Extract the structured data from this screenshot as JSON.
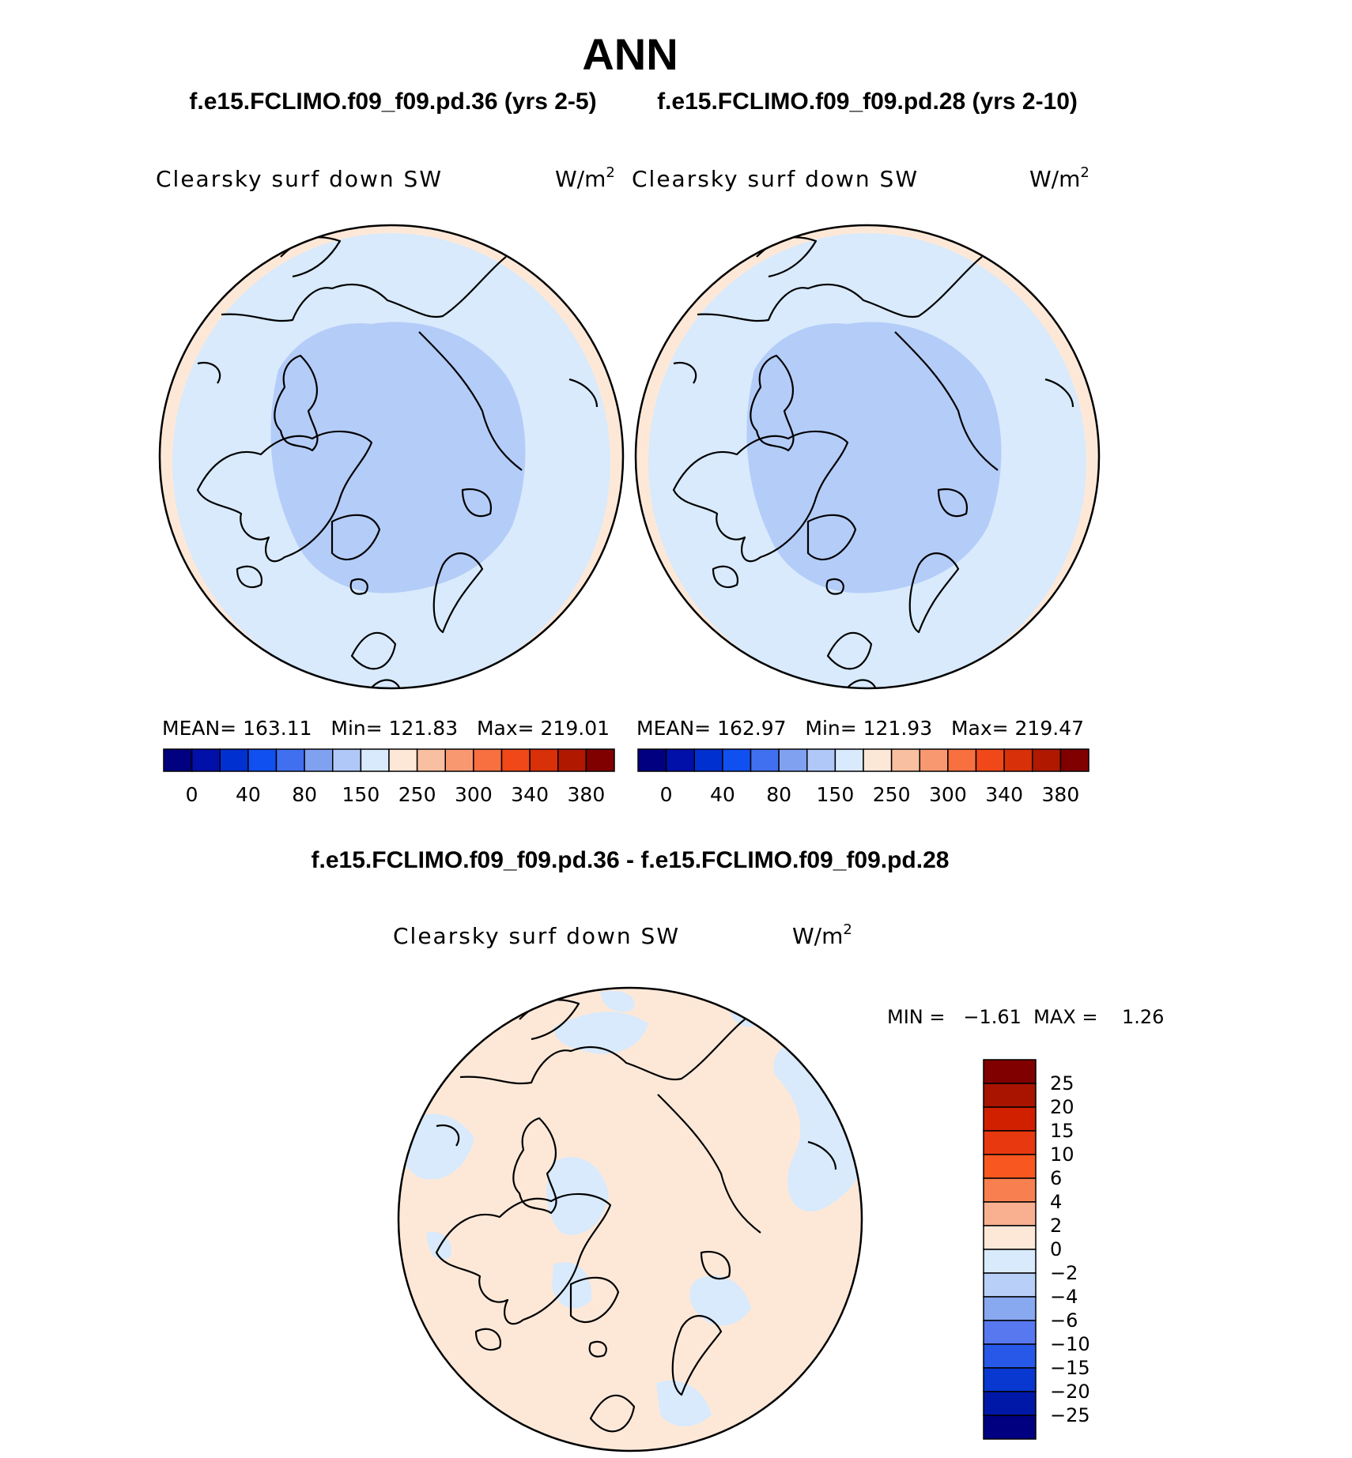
{
  "header": {
    "title": "ANN",
    "case_a_title": "f.e15.FCLIMO.f09_f09.pd.36 (yrs 2-5)",
    "case_b_title": "f.e15.FCLIMO.f09_f09.pd.28 (yrs 2-10)",
    "diff_title": "f.e15.FCLIMO.f09_f09.pd.36 - f.e15.FCLIMO.f09_f09.pd.28"
  },
  "panels": {
    "a": {
      "variable": "Clearsky surf down SW",
      "units": "W/m",
      "units_sup": "2",
      "stats": "MEAN= 163.11   Min= 121.83   Max= 219.01"
    },
    "b": {
      "variable": "Clearsky surf down SW",
      "units": "W/m",
      "units_sup": "2",
      "stats": "MEAN= 162.97   Min= 121.93   Max= 219.47"
    },
    "diff": {
      "variable": "Clearsky surf down SW",
      "units": "W/m",
      "units_sup": "2",
      "minmax": "MIN =   −1.61  MAX =    1.26"
    }
  },
  "chart_data": [
    {
      "type": "heatmap",
      "title": "Clearsky surf down SW",
      "units": "W/m2",
      "projection": "north polar stereographic",
      "stats": {
        "mean": 163.11,
        "min": 121.83,
        "max": 219.01
      },
      "colorbar": {
        "orientation": "horizontal",
        "tick_labels": [
          "0",
          "40",
          "80",
          "150",
          "250",
          "300",
          "340",
          "380"
        ],
        "colors": [
          "#000080",
          "#0010a8",
          "#0030d0",
          "#1050f0",
          "#4070f0",
          "#80a0f0",
          "#b0c8f8",
          "#d8eafc",
          "#fde8d8",
          "#f8c0a0",
          "#f89870",
          "#f87040",
          "#f04818",
          "#d83008",
          "#b01800",
          "#800000"
        ]
      }
    },
    {
      "type": "heatmap",
      "title": "Clearsky surf down SW",
      "units": "W/m2",
      "projection": "north polar stereographic",
      "stats": {
        "mean": 162.97,
        "min": 121.93,
        "max": 219.47
      },
      "colorbar": {
        "orientation": "horizontal",
        "tick_labels": [
          "0",
          "40",
          "80",
          "150",
          "250",
          "300",
          "340",
          "380"
        ],
        "colors": [
          "#000080",
          "#0010a8",
          "#0030d0",
          "#1050f0",
          "#4070f0",
          "#80a0f0",
          "#b0c8f8",
          "#d8eafc",
          "#fde8d8",
          "#f8c0a0",
          "#f89870",
          "#f87040",
          "#f04818",
          "#d83008",
          "#b01800",
          "#800000"
        ]
      }
    },
    {
      "type": "heatmap",
      "title": "Clearsky surf down SW",
      "units": "W/m2",
      "projection": "north polar stereographic",
      "stats": {
        "min": -1.61,
        "max": 1.26
      },
      "colorbar": {
        "orientation": "vertical",
        "tick_labels": [
          "25",
          "20",
          "15",
          "10",
          "6",
          "4",
          "2",
          "0",
          "−2",
          "−4",
          "−6",
          "−10",
          "−15",
          "−20",
          "−25"
        ],
        "colors": [
          "#800000",
          "#a81400",
          "#d02000",
          "#e83810",
          "#f85820",
          "#f88050",
          "#f8b090",
          "#fde8d8",
          "#d8eafc",
          "#b8d0f8",
          "#88a8f0",
          "#5878f0",
          "#2858e8",
          "#0838d0",
          "#0018a8",
          "#000080"
        ]
      }
    }
  ]
}
